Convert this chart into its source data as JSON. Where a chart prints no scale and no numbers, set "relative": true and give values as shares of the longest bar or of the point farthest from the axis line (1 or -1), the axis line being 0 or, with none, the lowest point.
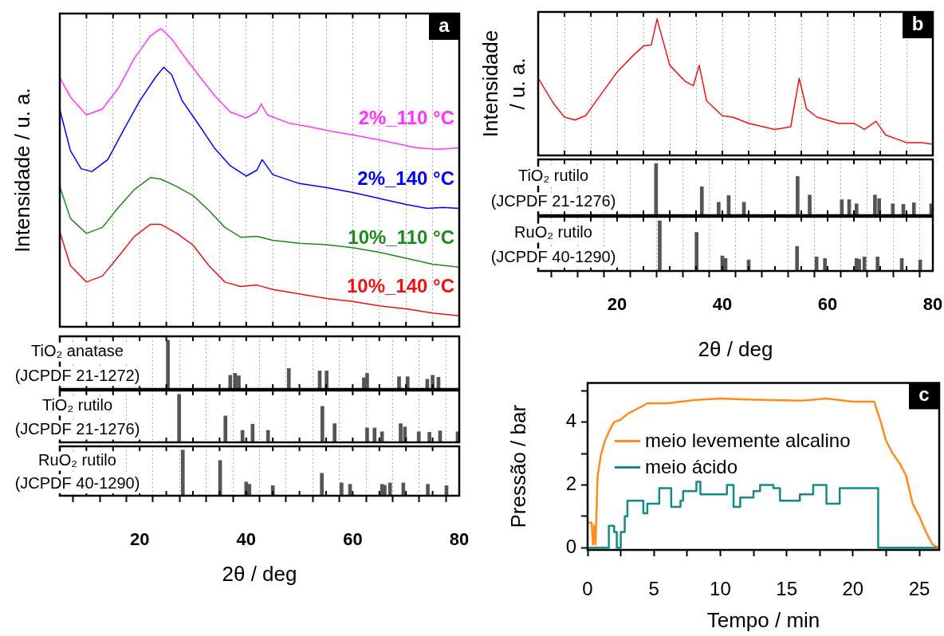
{
  "chart_data": [
    {
      "type": "line",
      "relative": true,
      "ylabel": "Intensidade / u. a.",
      "annotations": [
        "a"
      ],
      "legend": false,
      "grid": "x",
      "tick_labels": false,
      "xlim": [
        5,
        80
      ],
      "xticks": [
        {
          "value": 5,
          "label": null
        },
        {
          "value": 10,
          "label": null
        },
        {
          "value": 15,
          "label": null
        },
        20,
        {
          "value": 25,
          "label": null
        },
        {
          "value": 30,
          "label": null
        },
        {
          "value": 35,
          "label": null
        },
        40,
        {
          "value": 45,
          "label": null
        },
        {
          "value": 50,
          "label": null
        },
        {
          "value": 55,
          "label": null
        },
        60,
        {
          "value": 65,
          "label": null
        },
        {
          "value": 70,
          "label": null
        },
        {
          "value": 75,
          "label": null
        },
        80
      ],
      "series": [
        {
          "name": "2%_110 °C",
          "color": "#ff33ff",
          "x": [
            5,
            7,
            10,
            13,
            16,
            19,
            22,
            24,
            26,
            28,
            31,
            34,
            37,
            40,
            42,
            42.8,
            44,
            48,
            52,
            56,
            60,
            64,
            68,
            72,
            76,
            80
          ],
          "values": [
            0.835,
            0.77,
            0.71,
            0.73,
            0.8,
            0.9,
            0.975,
            1,
            0.965,
            0.915,
            0.845,
            0.776,
            0.72,
            0.7,
            0.72,
            0.747,
            0.71,
            0.683,
            0.67,
            0.655,
            0.643,
            0.63,
            0.615,
            0.6,
            0.595,
            0.6
          ]
        },
        {
          "name": "2%_140 °C",
          "color": "#0000ff",
          "x": [
            5,
            7,
            9,
            11,
            14,
            17,
            20,
            23,
            24.5,
            26,
            28,
            31,
            34,
            37,
            40,
            42,
            43,
            45,
            50,
            55,
            60,
            65,
            70,
            74,
            77,
            80
          ],
          "values": [
            0.728,
            0.59,
            0.53,
            0.52,
            0.56,
            0.66,
            0.757,
            0.837,
            0.87,
            0.845,
            0.757,
            0.68,
            0.6,
            0.54,
            0.505,
            0.525,
            0.56,
            0.51,
            0.48,
            0.467,
            0.45,
            0.43,
            0.41,
            0.397,
            0.4,
            0.397
          ]
        },
        {
          "name": "10%_110 °C",
          "color": "#1a8a1a",
          "x": [
            5,
            7,
            10,
            13,
            16,
            19,
            22,
            24,
            27,
            30,
            33,
            36,
            39,
            42,
            45,
            50,
            55,
            60,
            65,
            70,
            75,
            80
          ],
          "values": [
            0.47,
            0.363,
            0.313,
            0.333,
            0.4,
            0.46,
            0.5,
            0.495,
            0.47,
            0.44,
            0.39,
            0.333,
            0.3,
            0.303,
            0.29,
            0.28,
            0.275,
            0.265,
            0.25,
            0.23,
            0.21,
            0.2
          ]
        },
        {
          "name": "10%_140 °C",
          "color": "#ee1111",
          "x": [
            5,
            7,
            10,
            13,
            16,
            19,
            22,
            24,
            27,
            30,
            33,
            36,
            39,
            42,
            45,
            50,
            55,
            60,
            65,
            70,
            75,
            80
          ],
          "values": [
            0.318,
            0.205,
            0.15,
            0.17,
            0.235,
            0.303,
            0.343,
            0.343,
            0.313,
            0.274,
            0.205,
            0.15,
            0.135,
            0.14,
            0.125,
            0.11,
            0.095,
            0.085,
            0.07,
            0.06,
            0.046,
            0.037
          ]
        }
      ]
    },
    {
      "type": "bar",
      "relative": true,
      "title": "TiO₂ anatase",
      "subtitle": "(JCPDF 21-1272)",
      "grid": "x",
      "tick_labels": false,
      "xlim": [
        5,
        80
      ],
      "xticks": [
        {
          "value": 5,
          "label": null
        },
        {
          "value": 10,
          "label": null
        },
        {
          "value": 15,
          "label": null
        },
        20,
        {
          "value": 25,
          "label": null
        },
        {
          "value": 30,
          "label": null
        },
        {
          "value": 35,
          "label": null
        },
        40,
        {
          "value": 45,
          "label": null
        },
        {
          "value": 50,
          "label": null
        },
        {
          "value": 55,
          "label": null
        },
        60,
        {
          "value": 65,
          "label": null
        },
        {
          "value": 70,
          "label": null
        },
        {
          "value": 75,
          "label": null
        },
        80
      ],
      "series": [
        {
          "color": "#555555",
          "x": [
            25.3,
            37,
            37.9,
            38.6,
            48,
            53.8,
            55.1,
            62.1,
            62.7,
            68.7,
            70.3,
            74,
            75,
            76.1
          ],
          "values": [
            1,
            0.28,
            0.32,
            0.27,
            0.42,
            0.37,
            0.37,
            0.23,
            0.32,
            0.25,
            0.25,
            0.2,
            0.28,
            0.24
          ]
        }
      ]
    },
    {
      "type": "bar",
      "relative": true,
      "title": "TiO₂ rutilo",
      "subtitle": "(JCPDF 21-1276)",
      "grid": "x",
      "tick_labels": false,
      "xlim": [
        5,
        80
      ],
      "xticks": [
        {
          "value": 5,
          "label": null
        },
        {
          "value": 10,
          "label": null
        },
        {
          "value": 15,
          "label": null
        },
        20,
        {
          "value": 25,
          "label": null
        },
        {
          "value": 30,
          "label": null
        },
        {
          "value": 35,
          "label": null
        },
        40,
        {
          "value": 45,
          "label": null
        },
        {
          "value": 50,
          "label": null
        },
        {
          "value": 55,
          "label": null
        },
        60,
        {
          "value": 65,
          "label": null
        },
        {
          "value": 70,
          "label": null
        },
        {
          "value": 75,
          "label": null
        },
        80
      ],
      "series": [
        {
          "color": "#555555",
          "x": [
            27.4,
            36.1,
            39.3,
            41.2,
            44.1,
            54.3,
            56.6,
            62.7,
            64.1,
            65.5,
            69,
            69.8,
            72.4,
            74.4,
            76.4,
            79.7
          ],
          "values": [
            1,
            0.55,
            0.25,
            0.38,
            0.25,
            0.75,
            0.39,
            0.3,
            0.3,
            0.22,
            0.39,
            0.32,
            0.22,
            0.21,
            0.24,
            0.22
          ]
        }
      ]
    },
    {
      "type": "bar",
      "relative": true,
      "title": "RuO₂ rutilo",
      "subtitle": "(JCPDF 40-1290)",
      "xlabel": "2θ / deg",
      "grid": "x",
      "tick_labels": "x",
      "xlim": [
        5,
        80
      ],
      "xticks": [
        {
          "value": 5,
          "label": null
        },
        {
          "value": 10,
          "label": null
        },
        {
          "value": 15,
          "label": null
        },
        20,
        {
          "value": 25,
          "label": null
        },
        {
          "value": 30,
          "label": null
        },
        {
          "value": 35,
          "label": null
        },
        40,
        {
          "value": 45,
          "label": null
        },
        {
          "value": 50,
          "label": null
        },
        {
          "value": 55,
          "label": null
        },
        60,
        {
          "value": 65,
          "label": null
        },
        {
          "value": 70,
          "label": null
        },
        {
          "value": 75,
          "label": null
        },
        80
      ],
      "series": [
        {
          "color": "#555555",
          "x": [
            28.1,
            35.1,
            40,
            40.6,
            45,
            54.2,
            57.9,
            59.5,
            65.5,
            66,
            67,
            69.5,
            74.1,
            77.6
          ],
          "values": [
            1,
            0.77,
            0.3,
            0.25,
            0.22,
            0.49,
            0.28,
            0.25,
            0.25,
            0.23,
            0.28,
            0.28,
            0.25,
            0.22
          ]
        }
      ]
    },
    {
      "type": "line",
      "relative": true,
      "ylabel": "Intensidade / u. a.",
      "annotations": [
        "b"
      ],
      "legend": false,
      "grid": "x",
      "tick_labels": false,
      "xlim": [
        5,
        80
      ],
      "xticks": [
        {
          "value": 5,
          "label": null
        },
        {
          "value": 10,
          "label": null
        },
        {
          "value": 15,
          "label": null
        },
        20,
        {
          "value": 25,
          "label": null
        },
        {
          "value": 30,
          "label": null
        },
        {
          "value": 35,
          "label": null
        },
        40,
        {
          "value": 45,
          "label": null
        },
        {
          "value": 50,
          "label": null
        },
        {
          "value": 55,
          "label": null
        },
        60,
        {
          "value": 65,
          "label": null
        },
        {
          "value": 70,
          "label": null
        },
        {
          "value": 75,
          "label": null
        },
        80
      ],
      "series": [
        {
          "color": "#ee1111",
          "x": [
            5,
            8,
            10,
            12,
            14,
            17,
            20,
            23,
            25,
            26.5,
            27.6,
            28.5,
            30,
            33,
            34.5,
            35.6,
            37,
            40,
            42,
            45,
            50,
            53,
            54.6,
            56,
            58,
            62,
            65,
            67,
            69.2,
            71,
            75,
            78,
            80
          ],
          "values": [
            0.565,
            0.376,
            0.28,
            0.26,
            0.29,
            0.45,
            0.61,
            0.73,
            0.8,
            0.81,
            1,
            0.87,
            0.66,
            0.54,
            0.51,
            0.66,
            0.4,
            0.29,
            0.28,
            0.235,
            0.19,
            0.21,
            0.565,
            0.34,
            0.28,
            0.235,
            0.235,
            0.19,
            0.25,
            0.15,
            0.094,
            0.094,
            0.082
          ]
        }
      ]
    },
    {
      "type": "bar",
      "relative": true,
      "title": "TiO₂ rutilo",
      "subtitle": "(JCPDF 21-1276)",
      "grid": "x",
      "tick_labels": false,
      "xlim": [
        5,
        80
      ],
      "xticks": [
        {
          "value": 5,
          "label": null
        },
        {
          "value": 10,
          "label": null
        },
        {
          "value": 15,
          "label": null
        },
        20,
        {
          "value": 25,
          "label": null
        },
        {
          "value": 30,
          "label": null
        },
        {
          "value": 35,
          "label": null
        },
        40,
        {
          "value": 45,
          "label": null
        },
        {
          "value": 50,
          "label": null
        },
        {
          "value": 55,
          "label": null
        },
        60,
        {
          "value": 65,
          "label": null
        },
        {
          "value": 70,
          "label": null
        },
        {
          "value": 75,
          "label": null
        },
        80
      ],
      "series": [
        {
          "color": "#555555",
          "x": [
            27.4,
            36.1,
            39.3,
            41.2,
            44.1,
            54.3,
            56.6,
            62.7,
            64.1,
            65.5,
            69,
            69.8,
            72.4,
            74.4,
            76.4,
            79.7
          ],
          "values": [
            1,
            0.55,
            0.25,
            0.38,
            0.25,
            0.75,
            0.39,
            0.3,
            0.3,
            0.22,
            0.39,
            0.32,
            0.22,
            0.21,
            0.24,
            0.22
          ]
        }
      ]
    },
    {
      "type": "bar",
      "relative": true,
      "title": "RuO₂ rutilo",
      "subtitle": "(JCPDF 40-1290)",
      "xlabel": "2θ / deg",
      "grid": "x",
      "tick_labels": "x",
      "xlim": [
        5,
        80
      ],
      "xticks": [
        {
          "value": 5,
          "label": null
        },
        {
          "value": 10,
          "label": null
        },
        {
          "value": 15,
          "label": null
        },
        20,
        {
          "value": 25,
          "label": null
        },
        {
          "value": 30,
          "label": null
        },
        {
          "value": 35,
          "label": null
        },
        40,
        {
          "value": 45,
          "label": null
        },
        {
          "value": 50,
          "label": null
        },
        {
          "value": 55,
          "label": null
        },
        60,
        {
          "value": 65,
          "label": null
        },
        {
          "value": 70,
          "label": null
        },
        {
          "value": 75,
          "label": null
        },
        80
      ],
      "series": [
        {
          "color": "#555555",
          "x": [
            28.1,
            35.1,
            40,
            40.6,
            45,
            54.2,
            57.9,
            59.5,
            65.5,
            66,
            67,
            69.5,
            74.1,
            77.6
          ],
          "values": [
            1,
            0.77,
            0.3,
            0.25,
            0.22,
            0.49,
            0.28,
            0.25,
            0.25,
            0.23,
            0.28,
            0.28,
            0.25,
            0.22
          ]
        }
      ]
    },
    {
      "type": "line",
      "xlabel": "Tempo / min",
      "ylabel": "Pressão / bar",
      "annotations": [
        "c"
      ],
      "legend": "top left",
      "xlim": [
        0,
        26.5
      ],
      "xticks": [
        0,
        {
          "value": 2.5,
          "label": null
        },
        5,
        {
          "value": 7.5,
          "label": null
        },
        10,
        {
          "value": 12.5,
          "label": null
        },
        15,
        {
          "value": 17.5,
          "label": null
        },
        20,
        {
          "value": 22.5,
          "label": null
        },
        25
      ],
      "ylim": [
        -0.07,
        5.25
      ],
      "yticks": [
        0,
        {
          "value": 1,
          "label": null
        },
        2,
        {
          "value": 3,
          "label": null
        },
        4,
        {
          "value": 5,
          "label": null
        }
      ],
      "series": [
        {
          "name": "meio levemente alcalino",
          "color": "#ff8c1a",
          "x": [
            0.05,
            0.3,
            0.4,
            0.5,
            0.6,
            0.75,
            1,
            1.3,
            1.7,
            2,
            2.5,
            3,
            4,
            4.5,
            6,
            7,
            8,
            10,
            12,
            14,
            16,
            18,
            20,
            21.6,
            22.1,
            22.5,
            23,
            23.5,
            24,
            24.5,
            25,
            25.5,
            26,
            26.5
          ],
          "values": [
            0.8,
            0.8,
            0.1,
            0.7,
            0.1,
            2.25,
            2.95,
            3.4,
            3.78,
            4,
            4.08,
            4.26,
            4.48,
            4.6,
            4.6,
            4.65,
            4.7,
            4.75,
            4.72,
            4.7,
            4.68,
            4.75,
            4.65,
            4.65,
            4,
            3.4,
            3,
            2.7,
            2.3,
            1.4,
            1,
            0.5,
            0.1,
            0
          ]
        },
        {
          "name": "meio ácido",
          "type": "step",
          "color": "#138a8a",
          "x": [
            0,
            1.5,
            1.6,
            2,
            2.2,
            2.5,
            2.8,
            3,
            4,
            4.2,
            4.5,
            5.4,
            6.3,
            7,
            7.2,
            8.2,
            8.5,
            10.5,
            11,
            11.5,
            12.5,
            13,
            14,
            14.5,
            16,
            17,
            18,
            19,
            21.6,
            21.9,
            26.5
          ],
          "values": [
            0,
            0,
            0.7,
            0.5,
            0,
            0.5,
            1,
            1.5,
            1.5,
            1.1,
            1.4,
            1.9,
            1.3,
            1.5,
            1.8,
            2.1,
            1.7,
            2,
            1.3,
            1.6,
            1.8,
            2,
            1.9,
            1.5,
            1.7,
            2,
            1.4,
            1.9,
            1.9,
            0,
            0
          ]
        }
      ]
    }
  ]
}
